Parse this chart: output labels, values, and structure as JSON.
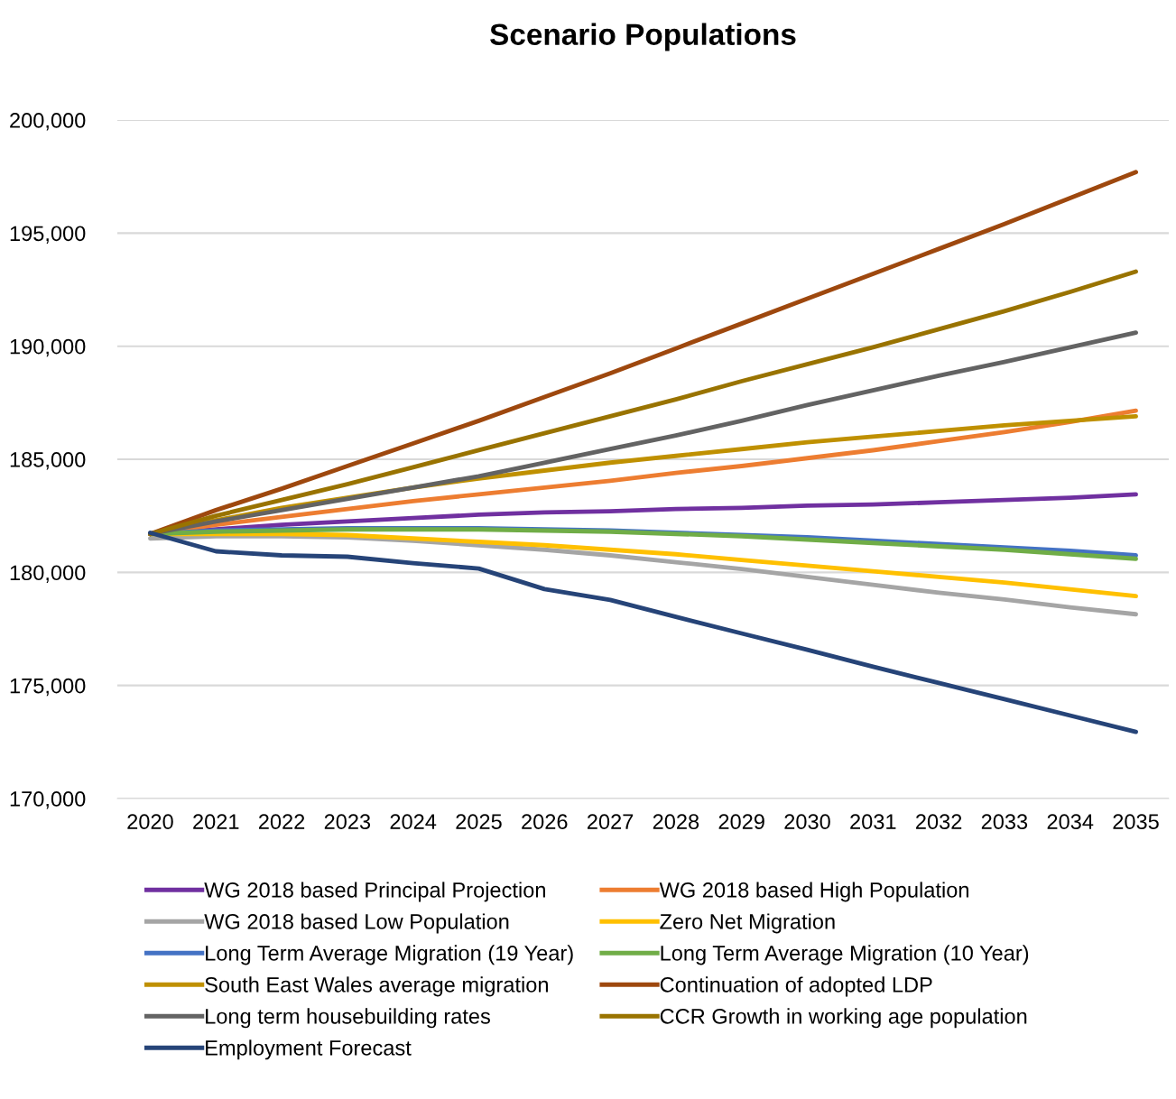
{
  "chart_data": {
    "type": "line",
    "title": "Scenario Populations",
    "categories": [
      "2020",
      "2021",
      "2022",
      "2023",
      "2024",
      "2025",
      "2026",
      "2027",
      "2028",
      "2029",
      "2030",
      "2031",
      "2032",
      "2033",
      "2034",
      "2035"
    ],
    "ylim": [
      170000,
      200000
    ],
    "yticks": [
      {
        "value": 170000,
        "label": "170,000"
      },
      {
        "value": 175000,
        "label": "175,000"
      },
      {
        "value": 180000,
        "label": "180,000"
      },
      {
        "value": 185000,
        "label": "185,000"
      },
      {
        "value": 190000,
        "label": "190,000"
      },
      {
        "value": 195000,
        "label": "195,000"
      },
      {
        "value": 200000,
        "label": "200,000"
      }
    ],
    "grid": "y",
    "legend": "bottom",
    "marker": "none",
    "line_style": "solid",
    "series": [
      {
        "name": "WG 2018 based Principal Projection",
        "color": "#7030a0",
        "values": [
          181700,
          181900,
          182100,
          182250,
          182400,
          182550,
          182650,
          182700,
          182800,
          182850,
          182950,
          183000,
          183100,
          183200,
          183300,
          183450
        ]
      },
      {
        "name": "WG 2018 based High Population",
        "color": "#ed7d31",
        "values": [
          181700,
          182100,
          182450,
          182800,
          183150,
          183450,
          183750,
          184050,
          184400,
          184700,
          185050,
          185400,
          185800,
          186200,
          186650,
          187150
        ]
      },
      {
        "name": "WG 2018 based Low Population",
        "color": "#a5a5a5",
        "values": [
          181500,
          181600,
          181600,
          181550,
          181400,
          181200,
          181000,
          180750,
          180450,
          180150,
          179800,
          179450,
          179100,
          178800,
          178450,
          178150
        ]
      },
      {
        "name": "Zero Net Migration",
        "color": "#ffc000",
        "values": [
          181700,
          181700,
          181700,
          181650,
          181500,
          181350,
          181200,
          181000,
          180800,
          180550,
          180300,
          180050,
          179800,
          179550,
          179250,
          178950
        ]
      },
      {
        "name": "Long Term Average Migration (19 Year)",
        "color": "#4472c4",
        "values": [
          181700,
          181850,
          181900,
          181950,
          181950,
          181950,
          181900,
          181850,
          181750,
          181650,
          181550,
          181400,
          181250,
          181100,
          180950,
          180750
        ]
      },
      {
        "name": "Long Term Average Migration (10 Year)",
        "color": "#70ad47",
        "values": [
          181700,
          181800,
          181850,
          181900,
          181900,
          181900,
          181850,
          181800,
          181700,
          181600,
          181450,
          181300,
          181150,
          181000,
          180800,
          180600
        ]
      },
      {
        "name": "South East Wales average migration",
        "color": "#bf9000",
        "values": [
          181700,
          182300,
          182850,
          183300,
          183750,
          184150,
          184500,
          184850,
          185150,
          185450,
          185750,
          186000,
          186250,
          186500,
          186700,
          186900
        ]
      },
      {
        "name": "Continuation of adopted LDP",
        "color": "#9e480e",
        "values": [
          181700,
          182750,
          183700,
          184700,
          185700,
          186700,
          187750,
          188800,
          189900,
          191000,
          192100,
          193200,
          194300,
          195400,
          196550,
          197700
        ]
      },
      {
        "name": "Long term housebuilding rates",
        "color": "#636363",
        "values": [
          181700,
          182250,
          182750,
          183250,
          183750,
          184250,
          184850,
          185450,
          186050,
          186700,
          187400,
          188050,
          188700,
          189300,
          189950,
          190600
        ]
      },
      {
        "name": "CCR Growth in working age population",
        "color": "#997300",
        "values": [
          181700,
          182500,
          183200,
          183900,
          184650,
          185400,
          186150,
          186900,
          187650,
          188450,
          189200,
          189950,
          190750,
          191550,
          192400,
          193300
        ]
      },
      {
        "name": "Employment Forecast",
        "color": "#264478",
        "values": [
          181750,
          180930,
          180750,
          180690,
          180410,
          180170,
          179260,
          178780,
          178030,
          177300,
          176580,
          175830,
          175110,
          174390,
          173670,
          172950
        ]
      }
    ]
  }
}
